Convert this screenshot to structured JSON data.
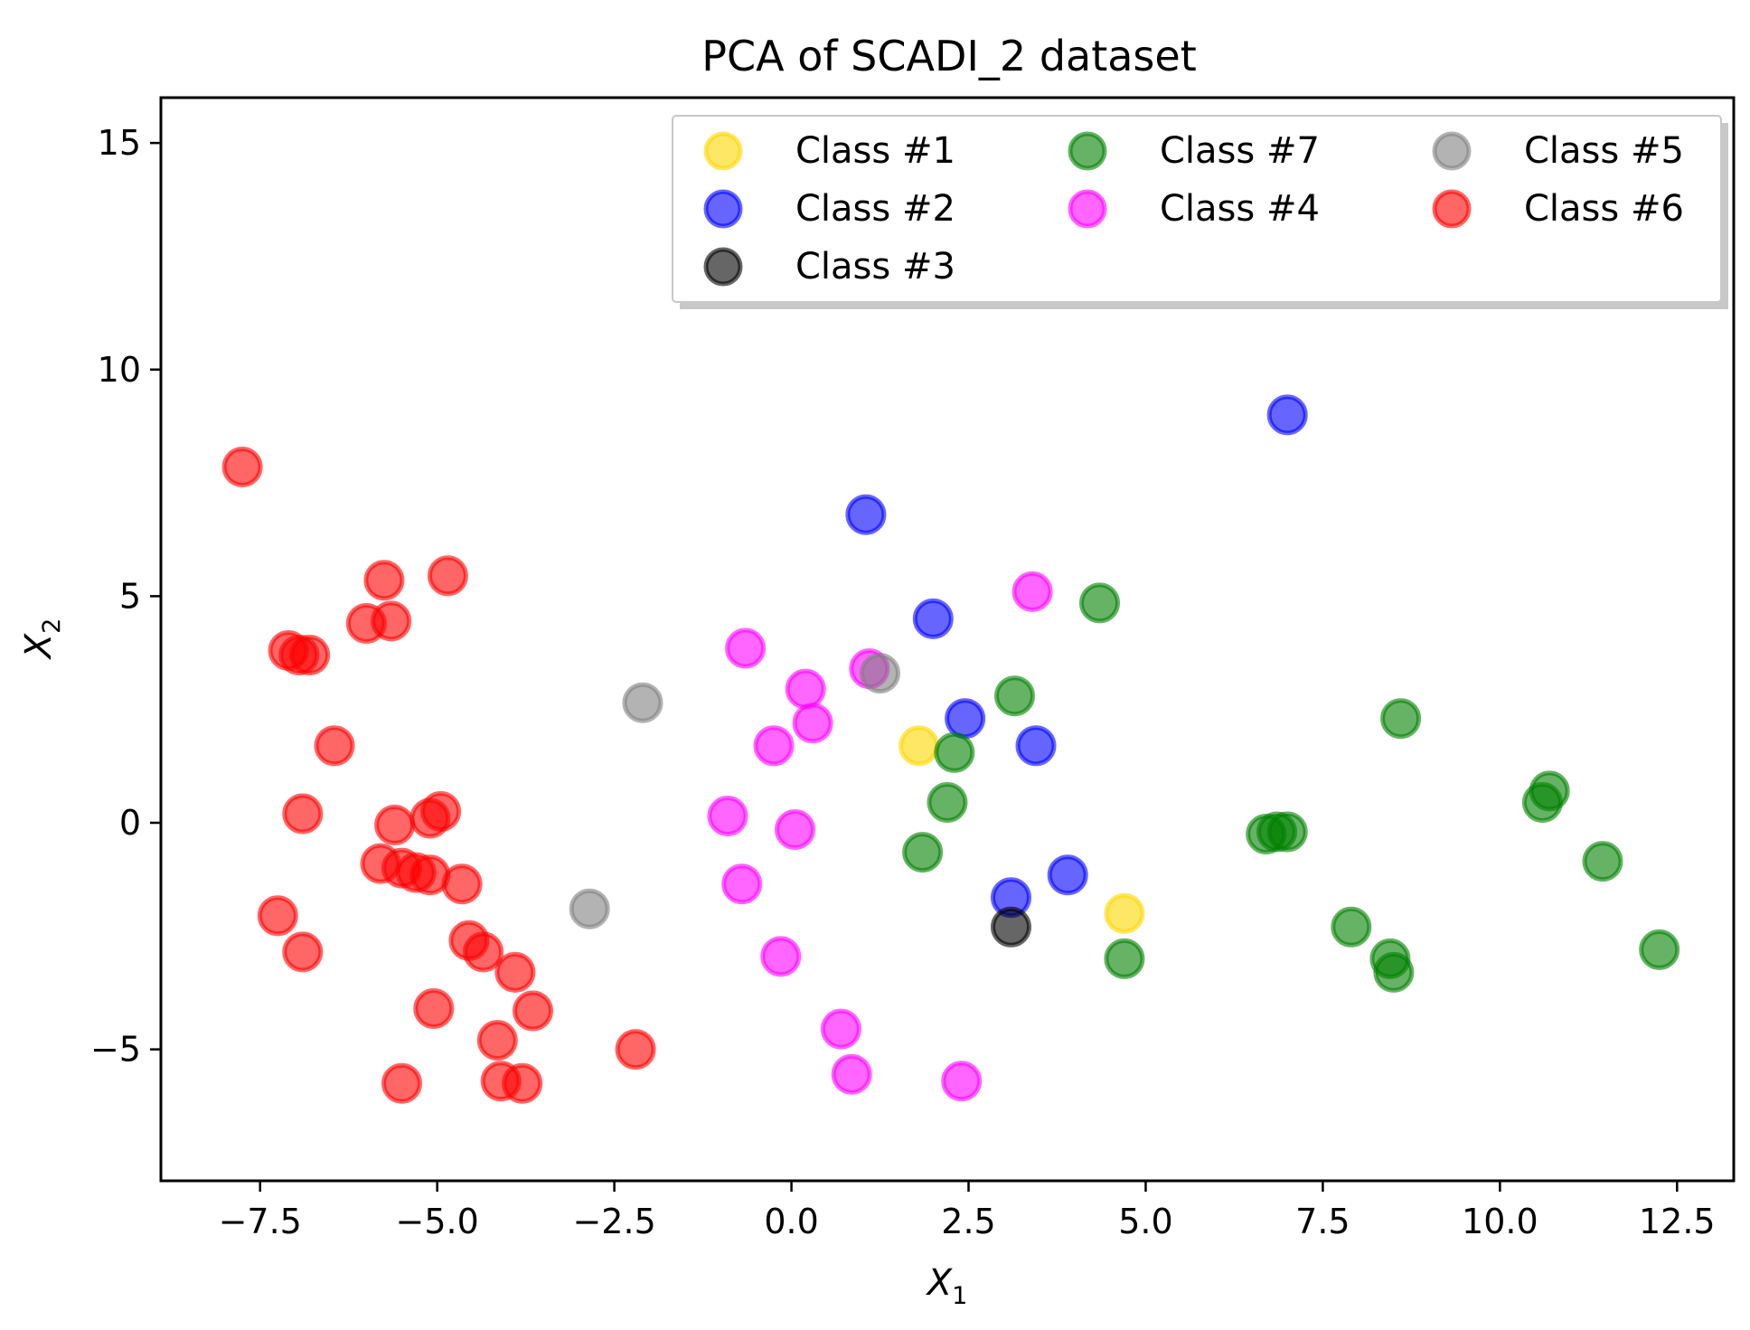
{
  "chart_data": {
    "type": "scatter",
    "title": "PCA of SCADI_2 dataset",
    "xlabel_base": "X",
    "xlabel_sub": "1",
    "ylabel_base": "X",
    "ylabel_sub": "2",
    "xlim": [
      -8.9,
      13.3
    ],
    "ylim": [
      -7.9,
      16.0
    ],
    "xticks": [
      -7.5,
      -5.0,
      -2.5,
      0.0,
      2.5,
      5.0,
      7.5,
      10.0,
      12.5
    ],
    "xtick_labels": [
      "−7.5",
      "−5.0",
      "−2.5",
      "0.0",
      "2.5",
      "5.0",
      "7.5",
      "10.0",
      "12.5"
    ],
    "yticks": [
      15,
      10,
      5,
      0,
      -5
    ],
    "ytick_labels": [
      "15",
      "10",
      "5",
      "0",
      "−5"
    ],
    "grid": false,
    "legend_position": "top-right",
    "legend_columns": [
      [
        "Class #1",
        "Class #2",
        "Class #3"
      ],
      [
        "Class #7",
        "Class #4"
      ],
      [
        "Class #5",
        "Class #6"
      ]
    ],
    "series": [
      {
        "name": "Class #1",
        "color": "#ffd700",
        "points": [
          [
            1.8,
            1.7
          ],
          [
            4.7,
            -2.0
          ]
        ]
      },
      {
        "name": "Class #2",
        "color": "#0000ff",
        "points": [
          [
            7.0,
            9.0
          ],
          [
            1.05,
            6.8
          ],
          [
            2.0,
            4.5
          ],
          [
            2.45,
            2.3
          ],
          [
            3.45,
            1.7
          ],
          [
            3.9,
            -1.15
          ],
          [
            3.1,
            -1.65
          ]
        ]
      },
      {
        "name": "Class #3",
        "color": "#000000",
        "points": [
          [
            3.1,
            -2.3
          ]
        ]
      },
      {
        "name": "Class #4",
        "color": "#ff00ff",
        "points": [
          [
            3.4,
            5.1
          ],
          [
            -0.65,
            3.85
          ],
          [
            1.1,
            3.4
          ],
          [
            0.2,
            2.95
          ],
          [
            0.3,
            2.2
          ],
          [
            -0.25,
            1.7
          ],
          [
            -0.9,
            0.15
          ],
          [
            0.05,
            -0.15
          ],
          [
            -0.7,
            -1.35
          ],
          [
            -0.15,
            -2.95
          ],
          [
            0.7,
            -4.55
          ],
          [
            0.85,
            -5.55
          ],
          [
            2.4,
            -5.7
          ]
        ]
      },
      {
        "name": "Class #5",
        "color": "#808080",
        "points": [
          [
            -2.1,
            2.65
          ],
          [
            1.25,
            3.3
          ],
          [
            -2.85,
            -1.9
          ]
        ]
      },
      {
        "name": "Class #6",
        "color": "#ff0000",
        "points": [
          [
            -7.75,
            7.85
          ],
          [
            -5.75,
            5.35
          ],
          [
            -4.85,
            5.45
          ],
          [
            -6.0,
            4.4
          ],
          [
            -5.65,
            4.45
          ],
          [
            -7.1,
            3.8
          ],
          [
            -6.95,
            3.7
          ],
          [
            -6.8,
            3.7
          ],
          [
            -6.45,
            1.7
          ],
          [
            -6.9,
            0.2
          ],
          [
            -5.6,
            -0.05
          ],
          [
            -5.1,
            0.1
          ],
          [
            -4.95,
            0.25
          ],
          [
            -5.8,
            -0.9
          ],
          [
            -5.5,
            -1.0
          ],
          [
            -5.3,
            -1.1
          ],
          [
            -5.1,
            -1.15
          ],
          [
            -4.65,
            -1.35
          ],
          [
            -7.25,
            -2.05
          ],
          [
            -6.9,
            -2.85
          ],
          [
            -4.55,
            -2.6
          ],
          [
            -4.35,
            -2.85
          ],
          [
            -3.9,
            -3.3
          ],
          [
            -3.65,
            -4.15
          ],
          [
            -5.05,
            -4.1
          ],
          [
            -4.15,
            -4.8
          ],
          [
            -2.2,
            -5.0
          ],
          [
            -5.5,
            -5.75
          ],
          [
            -4.1,
            -5.7
          ],
          [
            -3.8,
            -5.75
          ]
        ]
      },
      {
        "name": "Class #7",
        "color": "#008000",
        "points": [
          [
            4.35,
            4.85
          ],
          [
            3.15,
            2.8
          ],
          [
            8.6,
            2.3
          ],
          [
            2.3,
            1.55
          ],
          [
            2.2,
            0.45
          ],
          [
            1.85,
            -0.65
          ],
          [
            6.7,
            -0.25
          ],
          [
            7.0,
            -0.2
          ],
          [
            6.85,
            -0.2
          ],
          [
            10.7,
            0.7
          ],
          [
            10.6,
            0.45
          ],
          [
            11.45,
            -0.85
          ],
          [
            7.9,
            -2.3
          ],
          [
            8.45,
            -3.0
          ],
          [
            8.5,
            -3.3
          ],
          [
            12.25,
            -2.8
          ],
          [
            4.7,
            -3.0
          ]
        ]
      }
    ]
  }
}
